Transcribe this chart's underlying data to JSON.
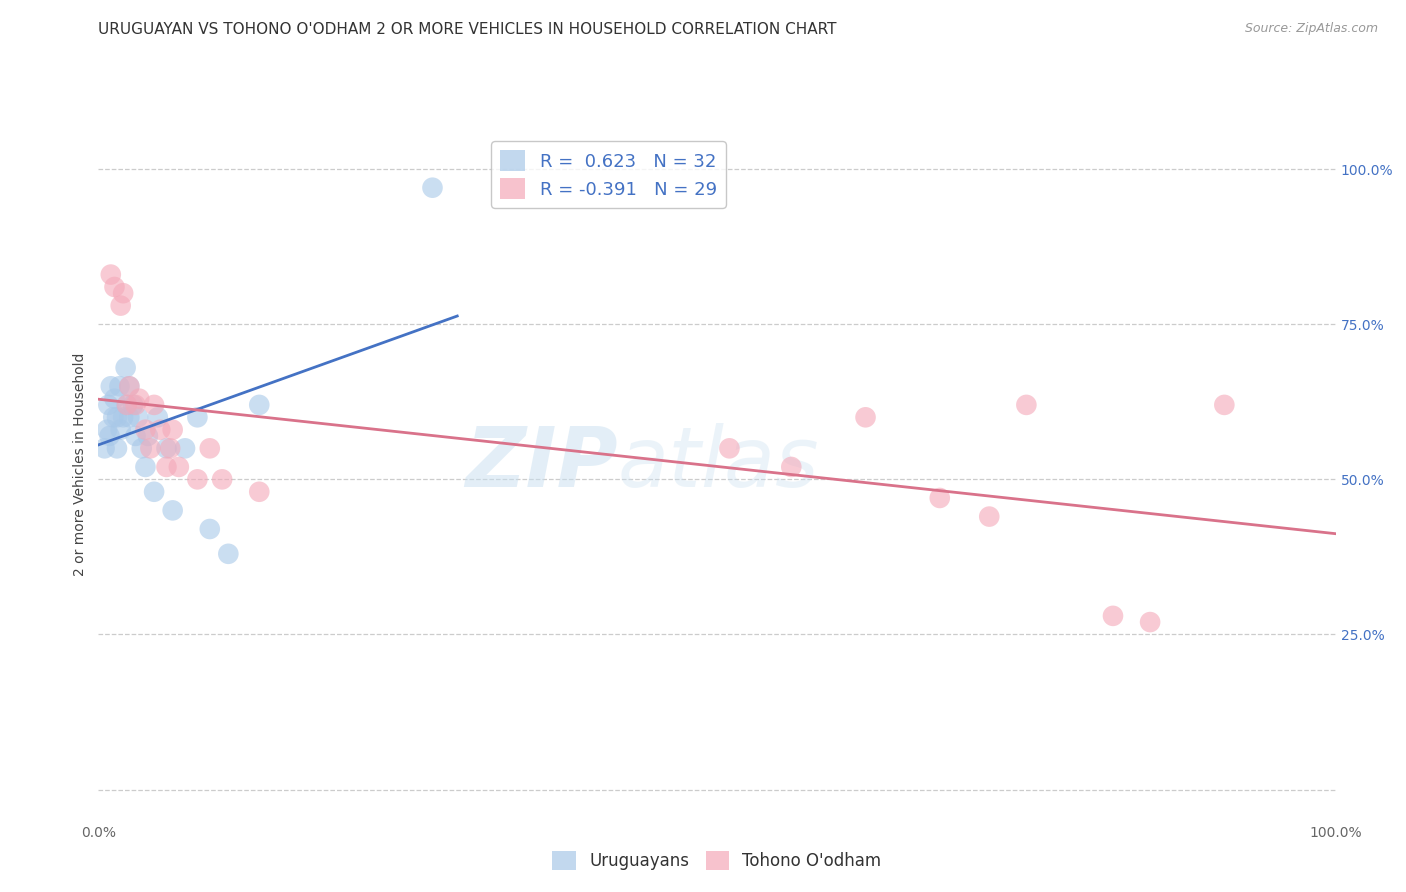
{
  "title": "URUGUAYAN VS TOHONO O'ODHAM 2 OR MORE VEHICLES IN HOUSEHOLD CORRELATION CHART",
  "source": "Source: ZipAtlas.com",
  "ylabel": "2 or more Vehicles in Household",
  "xlim": [
    0,
    1.0
  ],
  "ylim": [
    -0.05,
    1.1
  ],
  "uruguayan_color": "#a8c8e8",
  "tohono_color": "#f4a8b8",
  "uruguayan_R": 0.623,
  "uruguayan_N": 32,
  "tohono_R": -0.391,
  "tohono_N": 29,
  "uruguayan_x": [
    0.005,
    0.007,
    0.008,
    0.009,
    0.01,
    0.012,
    0.013,
    0.015,
    0.015,
    0.017,
    0.018,
    0.02,
    0.022,
    0.023,
    0.025,
    0.025,
    0.028,
    0.03,
    0.032,
    0.035,
    0.038,
    0.04,
    0.045,
    0.048,
    0.055,
    0.06,
    0.07,
    0.08,
    0.09,
    0.105,
    0.13,
    0.27
  ],
  "uruguayan_y": [
    0.55,
    0.58,
    0.62,
    0.57,
    0.65,
    0.6,
    0.63,
    0.55,
    0.6,
    0.65,
    0.58,
    0.6,
    0.68,
    0.62,
    0.65,
    0.6,
    0.62,
    0.57,
    0.6,
    0.55,
    0.52,
    0.57,
    0.48,
    0.6,
    0.55,
    0.45,
    0.55,
    0.6,
    0.42,
    0.38,
    0.62,
    0.97
  ],
  "tohono_x": [
    0.01,
    0.013,
    0.018,
    0.02,
    0.023,
    0.025,
    0.03,
    0.033,
    0.038,
    0.042,
    0.045,
    0.05,
    0.055,
    0.058,
    0.06,
    0.065,
    0.08,
    0.09,
    0.1,
    0.13,
    0.51,
    0.56,
    0.62,
    0.68,
    0.72,
    0.75,
    0.82,
    0.85,
    0.91
  ],
  "tohono_y": [
    0.83,
    0.81,
    0.78,
    0.8,
    0.62,
    0.65,
    0.62,
    0.63,
    0.58,
    0.55,
    0.62,
    0.58,
    0.52,
    0.55,
    0.58,
    0.52,
    0.5,
    0.55,
    0.5,
    0.48,
    0.55,
    0.52,
    0.6,
    0.47,
    0.44,
    0.62,
    0.28,
    0.27,
    0.62
  ],
  "uruguayan_line_color": "#4472c4",
  "tohono_line_color": "#d9728a",
  "watermark_zip": "ZIP",
  "watermark_atlas": "atlas",
  "background_color": "#ffffff",
  "grid_color": "#cccccc",
  "title_fontsize": 11,
  "label_fontsize": 10,
  "tick_fontsize": 10,
  "legend_label_color": "#4472c4",
  "right_tick_color": "#4472c4"
}
